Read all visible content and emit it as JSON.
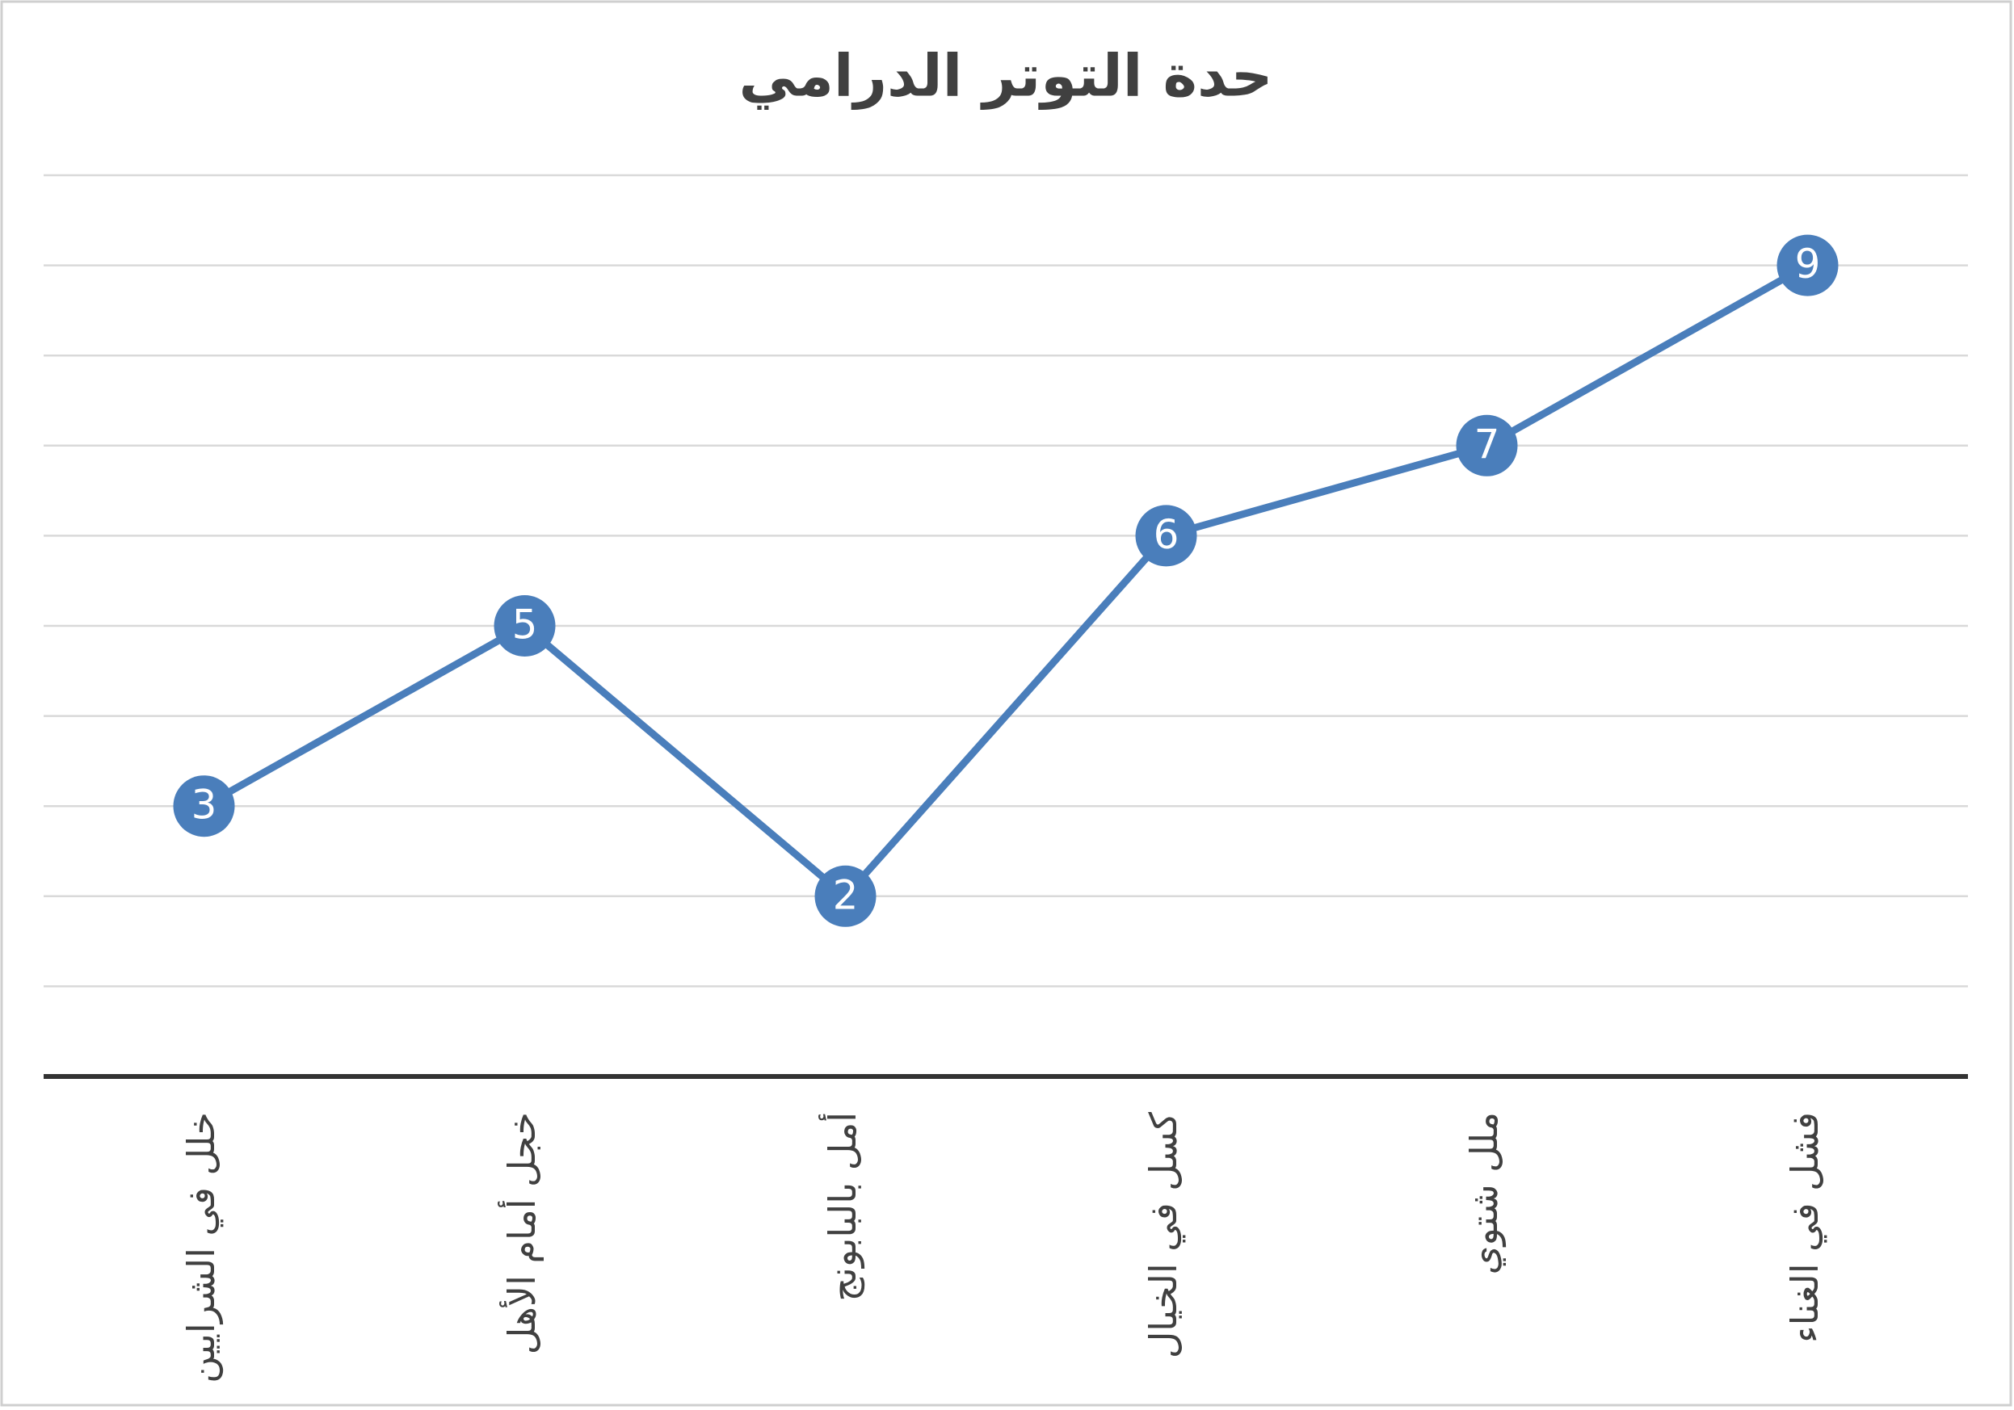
{
  "chart_data": {
    "type": "line",
    "title": "حدة التوتر الدرامي",
    "categories": [
      "خلل في الشرايين",
      "خجل أمام الأهل",
      "أمل بالبابونج",
      "كسل في الخيال",
      "ملل شتوي",
      "فشل في الغناء"
    ],
    "values": [
      3,
      5,
      2,
      6,
      7,
      9
    ],
    "color": "#4a7ebb",
    "ylim": [
      0,
      10
    ],
    "yticks": [
      0,
      1,
      2,
      3,
      4,
      5,
      6,
      7,
      8,
      9,
      10
    ],
    "grid": true
  }
}
